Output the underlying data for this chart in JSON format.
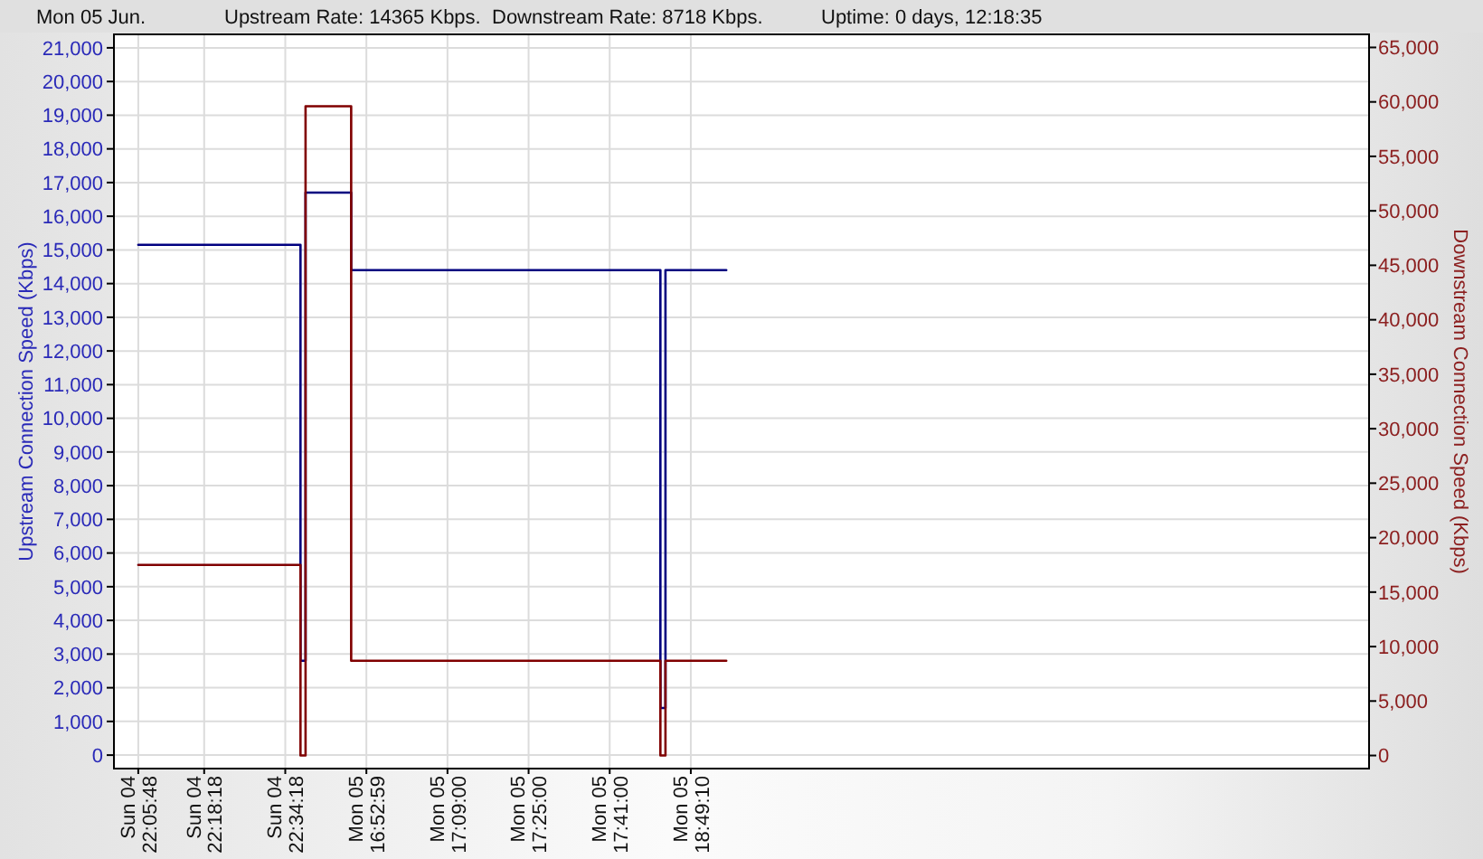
{
  "chart_data": {
    "type": "step",
    "title": "Mon 05 Jun.",
    "annotations": [
      "Upstream Rate: 14365 Kbps.",
      "Downstream Rate: 8718 Kbps.",
      "Uptime: 0 days, 12:18:35"
    ],
    "ylabel": "Upstream Connection Speed (Kbps)",
    "y2label": "Downstream Connection Speed (Kbps)",
    "categories": [
      "Sun 04\n22:05:48",
      null,
      null,
      null,
      null,
      null,
      null,
      null,
      null,
      null,
      null,
      null,
      null,
      "Sun 04\n22:18:18",
      null,
      null,
      null,
      null,
      null,
      null,
      null,
      null,
      null,
      null,
      null,
      null,
      null,
      null,
      null,
      "Sun 04\n22:34:18",
      null,
      null,
      null,
      null,
      null,
      null,
      null,
      null,
      null,
      null,
      null,
      null,
      null,
      null,
      null,
      "Mon 05\n16:52:59",
      null,
      null,
      null,
      null,
      null,
      null,
      null,
      null,
      null,
      null,
      null,
      null,
      null,
      null,
      null,
      "Mon 05\n17:09:00",
      null,
      null,
      null,
      null,
      null,
      null,
      null,
      null,
      null,
      null,
      null,
      null,
      null,
      null,
      null,
      "Mon 05\n17:25:00",
      null,
      null,
      null,
      null,
      null,
      null,
      null,
      null,
      null,
      null,
      null,
      null,
      null,
      null,
      null,
      "Mon 05\n17:41:00",
      null,
      null,
      null,
      null,
      null,
      null,
      null,
      null,
      null,
      null,
      null,
      null,
      null,
      null,
      null,
      "Mon 05\n18:49:10",
      null,
      null,
      null,
      null,
      null,
      null,
      null,
      null,
      null,
      null,
      null,
      null,
      null,
      null,
      null,
      null,
      null,
      null,
      null,
      null,
      null,
      null,
      null,
      null,
      null,
      null,
      null,
      null,
      null,
      null,
      null,
      null,
      null,
      null,
      null,
      null,
      null,
      null,
      null,
      null,
      null,
      null,
      null,
      null,
      null,
      null,
      null,
      null,
      null,
      null,
      null,
      null,
      null,
      null,
      null,
      null,
      null,
      null,
      null,
      null,
      null,
      null,
      null,
      null,
      null,
      null,
      null,
      null,
      null,
      null,
      null,
      null,
      null,
      null,
      null,
      null,
      null,
      null,
      null,
      null,
      null,
      null,
      null,
      null,
      null,
      null,
      null,
      null,
      null,
      null,
      null,
      null,
      null,
      null,
      null,
      null,
      null,
      null,
      null,
      null,
      null,
      null,
      null,
      null,
      null,
      null,
      null,
      null,
      null,
      null,
      null,
      null,
      null,
      null,
      null,
      null,
      null,
      null,
      null,
      null,
      null,
      null,
      null,
      null,
      null,
      null,
      null,
      null,
      null
    ],
    "ylim": [
      -400,
      21400
    ],
    "yticks": [
      0,
      {
        "value": 1000,
        "label": "1,000"
      },
      {
        "value": 2000,
        "label": "2,000"
      },
      {
        "value": 3000,
        "label": "3,000"
      },
      {
        "value": 4000,
        "label": "4,000"
      },
      {
        "value": 5000,
        "label": "5,000"
      },
      {
        "value": 6000,
        "label": "6,000"
      },
      {
        "value": 7000,
        "label": "7,000"
      },
      {
        "value": 8000,
        "label": "8,000"
      },
      {
        "value": 9000,
        "label": "9,000"
      },
      {
        "value": 10000,
        "label": "10,000"
      },
      {
        "value": 11000,
        "label": "11,000"
      },
      {
        "value": 12000,
        "label": "12,000"
      },
      {
        "value": 13000,
        "label": "13,000"
      },
      {
        "value": 14000,
        "label": "14,000"
      },
      {
        "value": 15000,
        "label": "15,000"
      },
      {
        "value": 16000,
        "label": "16,000"
      },
      {
        "value": 17000,
        "label": "17,000"
      },
      {
        "value": 18000,
        "label": "18,000"
      },
      {
        "value": 19000,
        "label": "19,000"
      },
      {
        "value": 20000,
        "label": "20,000"
      },
      {
        "value": 21000,
        "label": "21,000"
      }
    ],
    "y2lim": [
      -1200,
      66200
    ],
    "y2ticks": [
      0,
      {
        "value": 5000,
        "label": "5,000"
      },
      {
        "value": 10000,
        "label": "10,000"
      },
      {
        "value": 15000,
        "label": "15,000"
      },
      {
        "value": 20000,
        "label": "20,000"
      },
      {
        "value": 25000,
        "label": "25,000"
      },
      {
        "value": 30000,
        "label": "30,000"
      },
      {
        "value": 35000,
        "label": "35,000"
      },
      {
        "value": 40000,
        "label": "40,000"
      },
      {
        "value": 45000,
        "label": "45,000"
      },
      {
        "value": 50000,
        "label": "50,000"
      },
      {
        "value": 55000,
        "label": "55,000"
      },
      {
        "value": 60000,
        "label": "60,000"
      },
      {
        "value": 65000,
        "label": "65,000"
      }
    ],
    "grid": true,
    "series": [
      {
        "color": "#000080",
        "values": [
          15150,
          15150,
          15150,
          15150,
          15150,
          15150,
          15150,
          15150,
          15150,
          15150,
          15150,
          15150,
          15150,
          15150,
          15150,
          15150,
          15150,
          15150,
          15150,
          15150,
          15150,
          15150,
          15150,
          15150,
          15150,
          15150,
          15150,
          15150,
          15150,
          15150,
          15150,
          15150,
          2800,
          16700,
          16700,
          16700,
          16700,
          16700,
          16700,
          16700,
          16700,
          16700,
          14400,
          14400,
          14400,
          14400,
          14400,
          14400,
          14400,
          14400,
          14400,
          14400,
          14400,
          14400,
          14400,
          14400,
          14400,
          14400,
          14400,
          14400,
          14400,
          14400,
          14400,
          14400,
          14400,
          14400,
          14400,
          14400,
          14400,
          14400,
          14400,
          14400,
          14400,
          14400,
          14400,
          14400,
          14400,
          14400,
          14400,
          14400,
          14400,
          14400,
          14400,
          14400,
          14400,
          14400,
          14400,
          14400,
          14400,
          14400,
          14400,
          14400,
          14400,
          14400,
          14400,
          14400,
          14400,
          14400,
          14400,
          14400,
          14400,
          14400,
          14400,
          1400,
          14400,
          14400,
          14400,
          14400,
          14400,
          14400,
          14400,
          14400,
          14400,
          14400,
          14400,
          14400,
          14400,
          null,
          null,
          null,
          null,
          null,
          null,
          null,
          null,
          null,
          null,
          null,
          null,
          null,
          null,
          null,
          null,
          null,
          null,
          null,
          null,
          null,
          null,
          null,
          null,
          null,
          null,
          null,
          null,
          null,
          null,
          null,
          null,
          null,
          null,
          null,
          null,
          null,
          null,
          null,
          null,
          null,
          null,
          null,
          null,
          null,
          null,
          null,
          null,
          null,
          null,
          null,
          null,
          null,
          null,
          null,
          null,
          null,
          null,
          null,
          null,
          null,
          null,
          null,
          null,
          null,
          null,
          null,
          null,
          null,
          null,
          null,
          null,
          null,
          null,
          null,
          null,
          null,
          null,
          null,
          null,
          null,
          null,
          null,
          null,
          null,
          null,
          null,
          null,
          null,
          null,
          null,
          null,
          null,
          null,
          null,
          null,
          null,
          null,
          null,
          null,
          null,
          null,
          null,
          null,
          null,
          null,
          null,
          null,
          null,
          null,
          null,
          null,
          null,
          null,
          null,
          null,
          null,
          null,
          null,
          null,
          null,
          null
        ]
      },
      {
        "color": "#800000",
        "axis": "y2",
        "values": [
          17500,
          17500,
          17500,
          17500,
          17500,
          17500,
          17500,
          17500,
          17500,
          17500,
          17500,
          17500,
          17500,
          17500,
          17500,
          17500,
          17500,
          17500,
          17500,
          17500,
          17500,
          17500,
          17500,
          17500,
          17500,
          17500,
          17500,
          17500,
          17500,
          17500,
          17500,
          17500,
          0,
          59600,
          59600,
          59600,
          59600,
          59600,
          59600,
          59600,
          59600,
          59600,
          8700,
          8700,
          8700,
          8700,
          8700,
          8700,
          8700,
          8700,
          8700,
          8700,
          8700,
          8700,
          8700,
          8700,
          8700,
          8700,
          8700,
          8700,
          8700,
          8700,
          8700,
          8700,
          8700,
          8700,
          8700,
          8700,
          8700,
          8700,
          8700,
          8700,
          8700,
          8700,
          8700,
          8700,
          8700,
          8700,
          8700,
          8700,
          8700,
          8700,
          8700,
          8700,
          8700,
          8700,
          8700,
          8700,
          8700,
          8700,
          8700,
          8700,
          8700,
          8700,
          8700,
          8700,
          8700,
          8700,
          8700,
          8700,
          8700,
          8700,
          8700,
          0,
          8700,
          8700,
          8700,
          8700,
          8700,
          8700,
          8700,
          8700,
          8700,
          8700,
          8700,
          8700,
          8700,
          null,
          null,
          null,
          null,
          null,
          null,
          null,
          null,
          null,
          null,
          null,
          null,
          null,
          null,
          null,
          null,
          null,
          null,
          null,
          null,
          null,
          null,
          null,
          null,
          null,
          null,
          null,
          null,
          null,
          null,
          null,
          null,
          null,
          null,
          null,
          null,
          null,
          null,
          null,
          null,
          null,
          null,
          null,
          null,
          null,
          null,
          null,
          null,
          null,
          null,
          null,
          null,
          null,
          null,
          null,
          null,
          null,
          null,
          null,
          null,
          null,
          null,
          null,
          null,
          null,
          null,
          null,
          null,
          null,
          null,
          null,
          null,
          null,
          null,
          null,
          null,
          null,
          null,
          null,
          null,
          null,
          null,
          null,
          null,
          null,
          null,
          null,
          null,
          null,
          null,
          null,
          null,
          null,
          null,
          null,
          null,
          null,
          null,
          null,
          null,
          null,
          null,
          null,
          null,
          null,
          null,
          null,
          null,
          null,
          null,
          null,
          null,
          null,
          null,
          null,
          null,
          null,
          null,
          null,
          null,
          null,
          null
        ]
      }
    ]
  }
}
